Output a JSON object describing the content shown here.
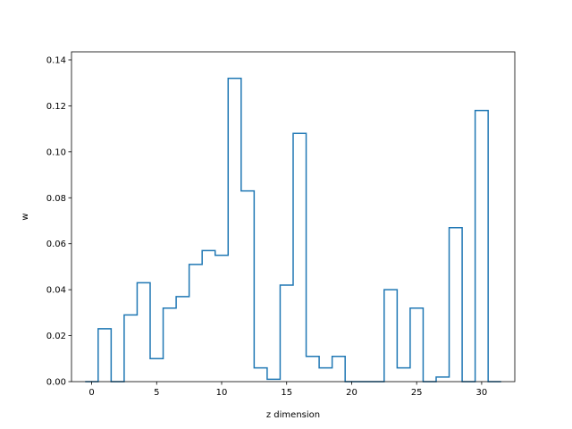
{
  "chart_data": {
    "type": "line",
    "style": "step",
    "title": "",
    "xlabel": "z dimension",
    "ylabel": "w",
    "xlim": [
      -1.55,
      32.55
    ],
    "ylim": [
      0,
      0.1435
    ],
    "xticks": [
      0,
      5,
      10,
      15,
      20,
      25,
      30
    ],
    "yticks": [
      0.0,
      0.02,
      0.04,
      0.06,
      0.08,
      0.1,
      0.12,
      0.14
    ],
    "ytick_labels": [
      "0.00",
      "0.02",
      "0.04",
      "0.06",
      "0.08",
      "0.10",
      "0.12",
      "0.14"
    ],
    "grid": false,
    "color": "#1f77b4",
    "x": [
      0,
      1,
      2,
      3,
      4,
      5,
      6,
      7,
      8,
      9,
      10,
      11,
      12,
      13,
      14,
      15,
      16,
      17,
      18,
      19,
      20,
      21,
      22,
      23,
      24,
      25,
      26,
      27,
      28,
      29,
      30
    ],
    "values": [
      0.0,
      0.023,
      0.0,
      0.029,
      0.043,
      0.01,
      0.032,
      0.037,
      0.051,
      0.057,
      0.055,
      0.132,
      0.083,
      0.006,
      0.001,
      0.042,
      0.108,
      0.011,
      0.006,
      0.011,
      0.0,
      0.0,
      0.0,
      0.04,
      0.006,
      0.032,
      0.0,
      0.002,
      0.067,
      0.0,
      0.118
    ]
  }
}
